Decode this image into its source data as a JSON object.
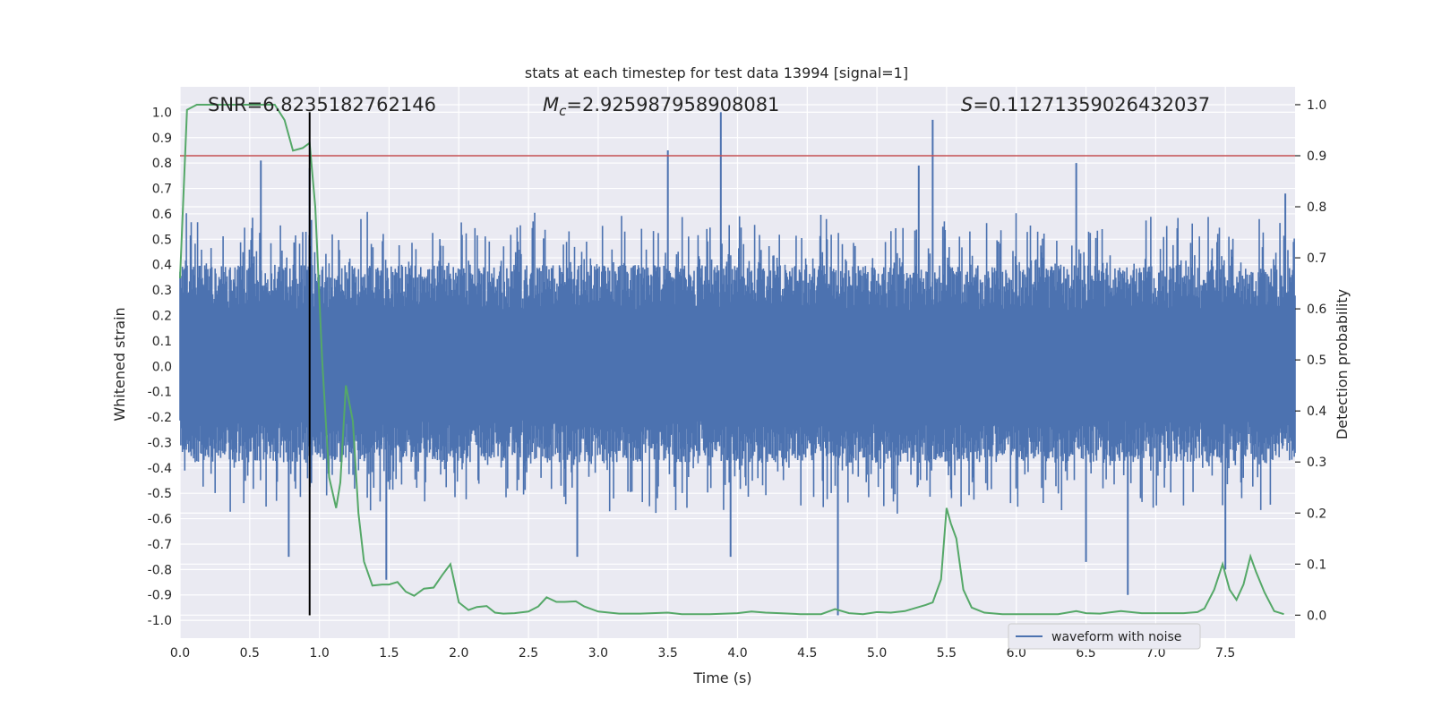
{
  "chart_data": {
    "type": "line",
    "title": "stats at each timestep for test data 13994 [signal=1]",
    "xlabel": "Time (s)",
    "ylabel_left": "Whitened strain",
    "ylabel_right": "Detection probability",
    "xlim": [
      0,
      8
    ],
    "ylim_left": [
      -1.07,
      1.1
    ],
    "ylim_right": [
      -0.045,
      1.035
    ],
    "x_ticks": [
      "0.0",
      "0.5",
      "1.0",
      "1.5",
      "2.0",
      "2.5",
      "3.0",
      "3.5",
      "4.0",
      "4.5",
      "5.0",
      "5.5",
      "6.0",
      "6.5",
      "7.0",
      "7.5"
    ],
    "y_ticks_left": [
      "-1.0",
      "-0.9",
      "-0.8",
      "-0.7",
      "-0.6",
      "-0.5",
      "-0.4",
      "-0.3",
      "-0.2",
      "-0.1",
      "0.0",
      "0.1",
      "0.2",
      "0.3",
      "0.4",
      "0.5",
      "0.6",
      "0.7",
      "0.8",
      "0.9",
      "1.0"
    ],
    "y_ticks_right": [
      "0.0",
      "0.1",
      "0.2",
      "0.3",
      "0.4",
      "0.5",
      "0.6",
      "0.7",
      "0.8",
      "0.9",
      "1.0"
    ],
    "grid": true,
    "legend": {
      "placement": "lower-right",
      "entries": [
        "waveform with noise"
      ]
    },
    "annotations": {
      "snr": "SNR=6.8235182762146",
      "mc_symbol": "M",
      "mc_subscript": "c",
      "mc_value": "=2.925987958908081",
      "s_symbol": "S",
      "s_value": "=0.11271359026432037"
    },
    "threshold_line": {
      "axis": "right",
      "y": 0.9,
      "color": "#c44e52"
    },
    "merger_marker": {
      "x": 0.93,
      "y_range_left": [
        -0.98,
        1.0
      ],
      "color": "#000000"
    },
    "colors": {
      "waveform": "#4c72b0",
      "probability": "#55a868",
      "background": "#eaeaf2",
      "grid": "#ffffff"
    },
    "waveform_series": {
      "name": "waveform with noise",
      "axis": "left",
      "x_range": [
        0,
        8
      ],
      "envelope_upper": 0.4,
      "envelope_lower": -0.38,
      "spikes": [
        {
          "x": 0.58,
          "y": 0.81
        },
        {
          "x": 0.93,
          "y": 0.78
        },
        {
          "x": 3.5,
          "y": 0.85
        },
        {
          "x": 3.88,
          "y": 1.0
        },
        {
          "x": 5.4,
          "y": 0.97
        },
        {
          "x": 5.3,
          "y": 0.79
        },
        {
          "x": 6.43,
          "y": 0.8
        },
        {
          "x": 7.93,
          "y": 0.68
        },
        {
          "x": 0.78,
          "y": -0.75
        },
        {
          "x": 1.48,
          "y": -0.84
        },
        {
          "x": 2.85,
          "y": -0.75
        },
        {
          "x": 4.72,
          "y": -0.98
        },
        {
          "x": 6.8,
          "y": -0.9
        },
        {
          "x": 7.5,
          "y": -0.8
        },
        {
          "x": 6.5,
          "y": -0.77
        },
        {
          "x": 3.95,
          "y": -0.75
        }
      ]
    },
    "probability_series": {
      "name": "detection probability",
      "axis": "right",
      "x": [
        0,
        0.05,
        0.12,
        0.2,
        0.3,
        0.4,
        0.5,
        0.6,
        0.68,
        0.75,
        0.81,
        0.88,
        0.93,
        0.97,
        1.02,
        1.07,
        1.12,
        1.15,
        1.19,
        1.24,
        1.28,
        1.32,
        1.38,
        1.45,
        1.5,
        1.56,
        1.62,
        1.68,
        1.75,
        1.82,
        1.88,
        1.94,
        2.0,
        2.07,
        2.13,
        2.2,
        2.26,
        2.32,
        2.4,
        2.5,
        2.57,
        2.63,
        2.7,
        2.76,
        2.84,
        2.9,
        3.0,
        3.15,
        3.3,
        3.5,
        3.6,
        3.8,
        4.0,
        4.1,
        4.2,
        4.3,
        4.45,
        4.6,
        4.7,
        4.8,
        4.9,
        5.0,
        5.1,
        5.2,
        5.35,
        5.4,
        5.46,
        5.5,
        5.53,
        5.57,
        5.62,
        5.68,
        5.77,
        5.9,
        6.1,
        6.3,
        6.43,
        6.5,
        6.6,
        6.75,
        6.9,
        7.05,
        7.2,
        7.3,
        7.35,
        7.42,
        7.48,
        7.53,
        7.58,
        7.63,
        7.68,
        7.72,
        7.78,
        7.85,
        7.92
      ],
      "y": [
        0.66,
        0.99,
        1.0,
        1.0,
        1.0,
        1.0,
        1.0,
        1.0,
        1.0,
        0.97,
        0.91,
        0.915,
        0.925,
        0.8,
        0.5,
        0.27,
        0.21,
        0.26,
        0.45,
        0.38,
        0.2,
        0.105,
        0.058,
        0.06,
        0.06,
        0.065,
        0.046,
        0.038,
        0.052,
        0.054,
        0.078,
        0.1,
        0.025,
        0.01,
        0.016,
        0.018,
        0.005,
        0.003,
        0.004,
        0.007,
        0.017,
        0.035,
        0.026,
        0.026,
        0.027,
        0.017,
        0.007,
        0.003,
        0.003,
        0.005,
        0.002,
        0.002,
        0.004,
        0.007,
        0.005,
        0.004,
        0.002,
        0.002,
        0.012,
        0.004,
        0.002,
        0.006,
        0.005,
        0.008,
        0.02,
        0.025,
        0.07,
        0.21,
        0.18,
        0.15,
        0.05,
        0.015,
        0.005,
        0.002,
        0.002,
        0.002,
        0.008,
        0.004,
        0.003,
        0.008,
        0.004,
        0.004,
        0.004,
        0.006,
        0.013,
        0.05,
        0.1,
        0.05,
        0.03,
        0.06,
        0.115,
        0.085,
        0.045,
        0.008,
        0.002
      ]
    }
  }
}
